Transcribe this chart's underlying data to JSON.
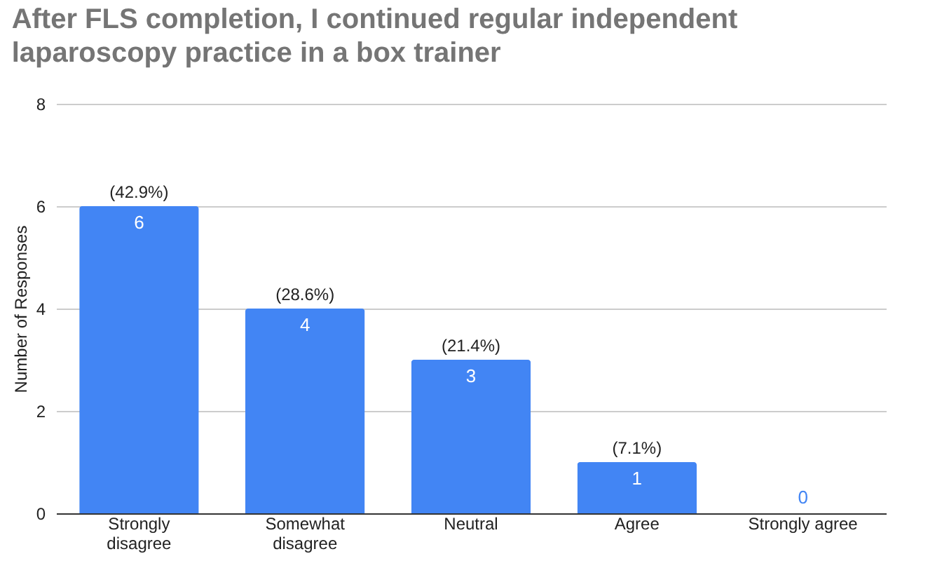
{
  "chart_data": {
    "type": "bar",
    "title": "After FLS completion, I continued regular independent laparoscopy practice in a box trainer",
    "ylabel": "Number of Responses",
    "categories": [
      "Strongly disagree",
      "Somewhat disagree",
      "Neutral",
      "Agree",
      "Strongly agree"
    ],
    "values": [
      6,
      4,
      3,
      1,
      0
    ],
    "color": "#4285f4",
    "ylim": [
      0,
      8
    ],
    "yticks": [
      0,
      2,
      4,
      6,
      8
    ],
    "grid": "y",
    "data_labels": true,
    "annotations": [
      {
        "text": "(42.9%)",
        "x": "Strongly disagree",
        "y": 6
      },
      {
        "text": "(28.6%)",
        "x": "Somewhat disagree",
        "y": 4
      },
      {
        "text": "(21.4%)",
        "x": "Neutral",
        "y": 3
      },
      {
        "text": "(7.1%)",
        "x": "Agree",
        "y": 1
      }
    ]
  }
}
